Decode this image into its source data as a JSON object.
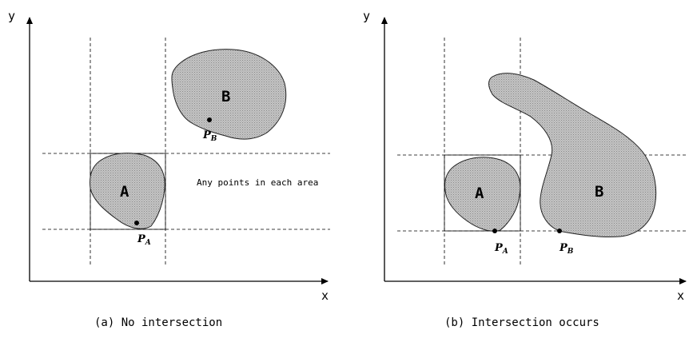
{
  "panels": [
    {
      "x_label": "x",
      "y_label": "y",
      "region_a": "A",
      "region_b": "B",
      "point_a": {
        "letter": "P",
        "sub": "A"
      },
      "point_b": {
        "letter": "P",
        "sub": "B"
      },
      "note": "Any points in each area",
      "caption": "(a)  No intersection"
    },
    {
      "x_label": "x",
      "y_label": "y",
      "region_a": "A",
      "region_b": "B",
      "point_a": {
        "letter": "P",
        "sub": "A"
      },
      "point_b": {
        "letter": "P",
        "sub": "B"
      },
      "caption": "(b)  Intersection occurs"
    }
  ],
  "colors": {
    "region_fill": "#bdbdbd",
    "line": "#000000"
  }
}
